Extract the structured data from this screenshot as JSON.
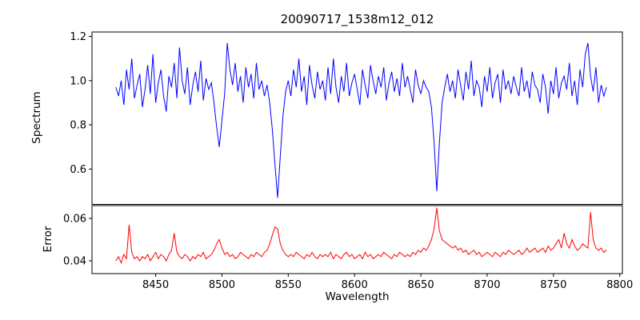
{
  "title": "20090717_1538m12_012",
  "xlabel": "Wavelength",
  "chart_data": [
    {
      "type": "line",
      "panel": "spectrum",
      "ylabel": "Spectrum",
      "color": "#0000ff",
      "line_width": 1,
      "x_start": 8420,
      "x_step": 2,
      "xlim": [
        8402,
        8802
      ],
      "ylim": [
        0.44,
        1.22
      ],
      "yticks": [
        0.6,
        0.8,
        1.0,
        1.2
      ],
      "yticklabels": [
        "0.6",
        "0.8",
        "1.0",
        "1.2"
      ],
      "xticks": [],
      "xticklabels": [],
      "values": [
        0.97,
        0.93,
        1.0,
        0.89,
        1.05,
        0.96,
        1.1,
        0.92,
        0.98,
        1.03,
        0.88,
        0.96,
        1.07,
        0.94,
        1.12,
        0.9,
        0.99,
        1.05,
        0.93,
        0.86,
        1.02,
        0.97,
        1.08,
        0.92,
        1.15,
        1.0,
        0.94,
        1.06,
        0.89,
        0.98,
        1.04,
        0.95,
        1.09,
        0.91,
        1.01,
        0.96,
        0.99,
        0.9,
        0.79,
        0.7,
        0.82,
        0.94,
        1.17,
        1.05,
        0.98,
        1.08,
        0.95,
        1.02,
        0.9,
        1.06,
        0.97,
        1.03,
        0.92,
        1.08,
        0.96,
        1.0,
        0.93,
        0.98,
        0.9,
        0.78,
        0.62,
        0.47,
        0.66,
        0.84,
        0.95,
        1.0,
        0.93,
        1.05,
        0.97,
        1.1,
        0.95,
        1.02,
        0.89,
        1.07,
        0.98,
        0.92,
        1.04,
        0.96,
        1.0,
        0.91,
        1.06,
        0.94,
        1.1,
        0.97,
        0.9,
        1.02,
        0.95,
        1.08,
        0.93,
        0.99,
        1.03,
        0.96,
        0.89,
        1.05,
        0.98,
        0.92,
        1.07,
        1.0,
        0.94,
        1.02,
        0.97,
        1.06,
        0.91,
        0.99,
        1.04,
        0.95,
        1.01,
        0.93,
        1.08,
        0.97,
        1.02,
        0.96,
        0.9,
        1.05,
        0.98,
        0.94,
        1.0,
        0.97,
        0.95,
        0.88,
        0.72,
        0.5,
        0.72,
        0.9,
        0.97,
        1.03,
        0.95,
        1.0,
        0.92,
        1.05,
        0.98,
        0.91,
        1.04,
        0.96,
        1.09,
        0.93,
        1.0,
        0.97,
        0.88,
        1.02,
        0.95,
        1.06,
        0.92,
        0.99,
        1.03,
        0.9,
        1.05,
        0.96,
        1.0,
        0.94,
        1.02,
        0.97,
        0.93,
        1.06,
        0.95,
        1.0,
        0.92,
        1.04,
        0.98,
        0.96,
        0.9,
        1.03,
        0.97,
        0.85,
        1.0,
        0.94,
        1.06,
        0.92,
        0.99,
        1.02,
        0.96,
        1.08,
        0.93,
        1.0,
        0.89,
        1.05,
        0.97,
        1.12,
        1.17,
        1.02,
        0.95,
        1.06,
        0.9,
        0.98,
        0.93,
        0.97
      ]
    },
    {
      "type": "line",
      "panel": "error",
      "ylabel": "Error",
      "color": "#ff0000",
      "line_width": 1,
      "x_start": 8420,
      "x_step": 2,
      "xlim": [
        8402,
        8802
      ],
      "ylim": [
        0.034,
        0.066
      ],
      "yticks": [
        0.04,
        0.06
      ],
      "yticklabels": [
        "0.04",
        "0.06"
      ],
      "xticks": [
        8450,
        8500,
        8550,
        8600,
        8650,
        8700,
        8750,
        8800
      ],
      "xticklabels": [
        "8450",
        "8500",
        "8550",
        "8600",
        "8650",
        "8700",
        "8750",
        "8800"
      ],
      "values": [
        0.04,
        0.042,
        0.039,
        0.043,
        0.041,
        0.057,
        0.044,
        0.041,
        0.042,
        0.04,
        0.042,
        0.041,
        0.043,
        0.04,
        0.042,
        0.044,
        0.041,
        0.043,
        0.042,
        0.04,
        0.043,
        0.045,
        0.053,
        0.044,
        0.042,
        0.041,
        0.043,
        0.042,
        0.04,
        0.042,
        0.041,
        0.043,
        0.042,
        0.044,
        0.041,
        0.042,
        0.043,
        0.045,
        0.048,
        0.05,
        0.046,
        0.043,
        0.044,
        0.042,
        0.043,
        0.041,
        0.042,
        0.044,
        0.043,
        0.042,
        0.041,
        0.043,
        0.042,
        0.044,
        0.043,
        0.042,
        0.044,
        0.045,
        0.048,
        0.052,
        0.056,
        0.055,
        0.048,
        0.045,
        0.043,
        0.042,
        0.043,
        0.042,
        0.044,
        0.043,
        0.042,
        0.041,
        0.043,
        0.042,
        0.044,
        0.042,
        0.041,
        0.043,
        0.042,
        0.043,
        0.042,
        0.044,
        0.041,
        0.043,
        0.042,
        0.041,
        0.043,
        0.044,
        0.042,
        0.043,
        0.041,
        0.042,
        0.043,
        0.041,
        0.044,
        0.042,
        0.043,
        0.041,
        0.042,
        0.043,
        0.042,
        0.044,
        0.043,
        0.042,
        0.041,
        0.043,
        0.042,
        0.044,
        0.043,
        0.042,
        0.043,
        0.042,
        0.044,
        0.043,
        0.045,
        0.044,
        0.046,
        0.045,
        0.047,
        0.05,
        0.055,
        0.065,
        0.054,
        0.05,
        0.049,
        0.048,
        0.047,
        0.046,
        0.047,
        0.045,
        0.046,
        0.044,
        0.045,
        0.043,
        0.044,
        0.045,
        0.043,
        0.044,
        0.042,
        0.043,
        0.044,
        0.043,
        0.042,
        0.044,
        0.043,
        0.042,
        0.044,
        0.043,
        0.045,
        0.044,
        0.043,
        0.044,
        0.045,
        0.043,
        0.044,
        0.046,
        0.044,
        0.045,
        0.046,
        0.044,
        0.045,
        0.046,
        0.044,
        0.047,
        0.045,
        0.046,
        0.048,
        0.05,
        0.046,
        0.053,
        0.048,
        0.046,
        0.05,
        0.047,
        0.045,
        0.046,
        0.048,
        0.047,
        0.046,
        0.063,
        0.05,
        0.046,
        0.045,
        0.046,
        0.044,
        0.045
      ]
    }
  ]
}
